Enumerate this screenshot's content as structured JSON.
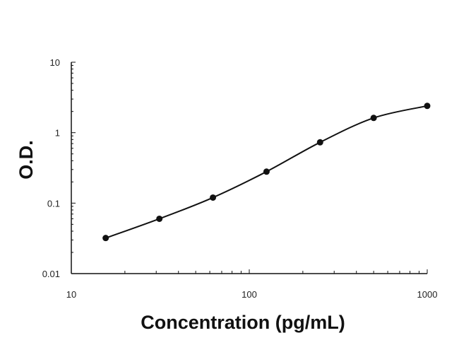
{
  "chart_data": {
    "type": "scatter",
    "xlabel": "Concentration (pg/mL)",
    "ylabel": "O.D.",
    "x_scale": "log",
    "y_scale": "log",
    "xlim": [
      10,
      1000
    ],
    "ylim": [
      0.01,
      10
    ],
    "x_ticks": [
      "10",
      "100",
      "1000"
    ],
    "y_ticks": [
      "0.01",
      "0.1",
      "1",
      "10"
    ],
    "grid": false,
    "legend": "none",
    "series": [
      {
        "x": [
          15.6,
          31.25,
          62.5,
          125,
          250,
          500,
          1000
        ],
        "y": [
          0.032,
          0.06,
          0.12,
          0.28,
          0.73,
          1.62,
          2.4
        ],
        "trendline": "smooth",
        "color": "#111111"
      }
    ]
  }
}
